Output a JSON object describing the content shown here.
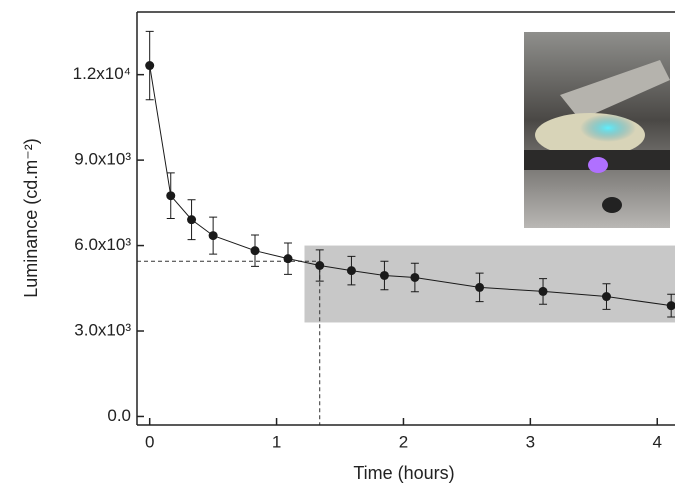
{
  "chart_data": {
    "type": "line",
    "xlabel": "Time (hours)",
    "ylabel": "Luminance (cd.m⁻²)",
    "x": [
      0,
      0.166,
      0.33,
      0.5,
      0.83,
      1.09,
      1.34,
      1.59,
      1.85,
      2.09,
      2.6,
      3.1,
      3.6,
      4.11
    ],
    "series": [
      {
        "color": "#1a1a1a",
        "values": [
          12320,
          7750,
          6910,
          6350,
          5820,
          5540,
          5300,
          5120,
          4950,
          4880,
          4530,
          4390,
          4210,
          3890
        ],
        "errors": [
          1200,
          800,
          700,
          650,
          550,
          550,
          550,
          500,
          500,
          500,
          500,
          450,
          450,
          400
        ]
      }
    ],
    "xlim": [
      -0.1,
      4.14
    ],
    "ylim": [
      -300,
      14200
    ],
    "xticks": [
      0,
      1,
      2,
      3,
      4
    ],
    "yticks": [
      {
        "value": 0,
        "label": "0.0"
      },
      {
        "value": 3000,
        "label": "3.0x10³"
      },
      {
        "value": 6000,
        "label": "6.0x10³"
      },
      {
        "value": 9000,
        "label": "9.0x10³"
      },
      {
        "value": 12000,
        "label": "1.2x10⁴"
      }
    ],
    "reference_point": {
      "x": 1.34,
      "y": 5450
    },
    "shaded_region": {
      "xlim": [
        1.22,
        4.14
      ],
      "ylim": [
        3300,
        6000
      ],
      "color": "#c8c8c8"
    }
  }
}
